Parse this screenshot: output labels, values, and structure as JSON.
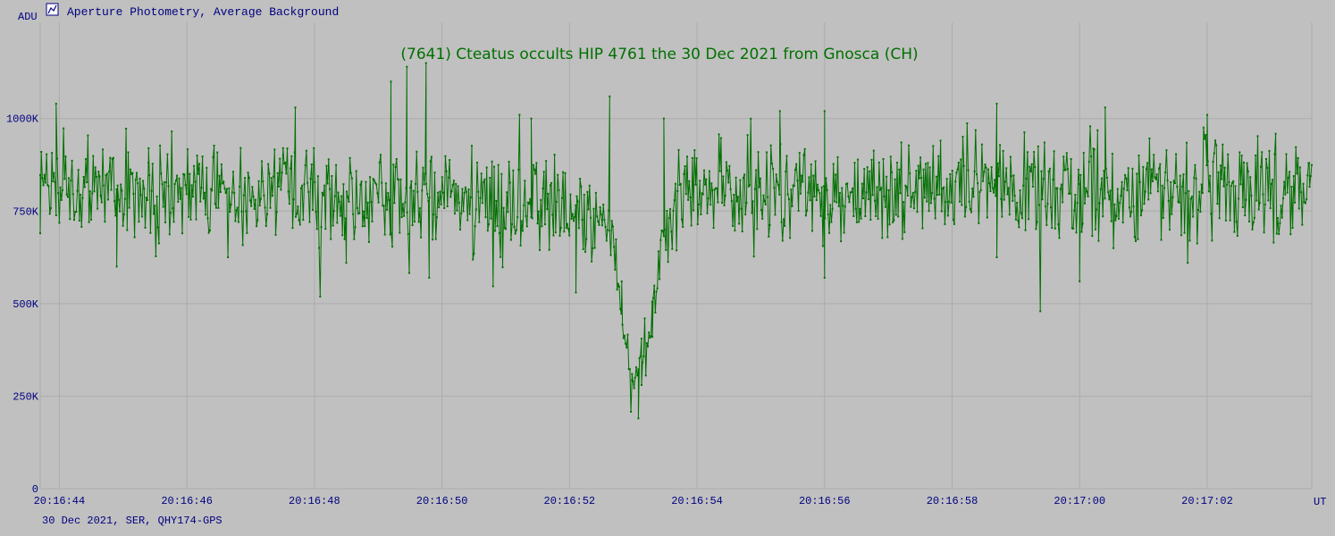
{
  "header": {
    "icon": "chart-window-icon",
    "title": "Aperture Photometry, Average Background"
  },
  "footer": {
    "caption": "30 Dec 2021, SER, QHY174-GPS"
  },
  "colors": {
    "background": "#c0c0c0",
    "grid": "#acacac",
    "axis_text": "#000080",
    "series": "#007000"
  },
  "chart_data": {
    "type": "line",
    "title": "(7641) Cteatus occults HIP 4761 the 30 Dec 2021 from Gnosca (CH)",
    "ylabel": "ADU",
    "xlabel": "UT",
    "xlim": [
      43.7,
      63.64
    ],
    "ylim": [
      0,
      1260000
    ],
    "y_ticks": [
      0,
      250000,
      500000,
      750000,
      1000000
    ],
    "y_tick_labels": [
      "0",
      "250K",
      "500K",
      "750K",
      "1000K"
    ],
    "x_ticks": [
      44,
      46,
      48,
      50,
      52,
      54,
      56,
      58,
      60,
      62
    ],
    "x_tick_labels": [
      "20:16:44",
      "20:16:46",
      "20:16:48",
      "20:16:50",
      "20:16:52",
      "20:16:54",
      "20:16:56",
      "20:16:58",
      "20:17:00",
      "20:17:02"
    ],
    "x_unit": "seconds after 20:16:00 UT",
    "grid": true,
    "series": [
      {
        "color": "#007000",
        "marker": "dot",
        "baseline_level": 810000,
        "noise_sigma": 68000,
        "drop_profile": {
          "x": [
            43.7,
            52.5,
            52.62,
            52.68,
            52.75,
            52.82,
            52.9,
            52.96,
            53.02,
            53.08,
            53.14,
            53.2,
            53.26,
            53.32,
            53.38,
            53.44,
            53.56,
            53.7,
            63.64
          ],
          "y": [
            810000,
            770000,
            710000,
            650000,
            560000,
            460000,
            390000,
            340000,
            320000,
            330000,
            350000,
            380000,
            430000,
            520000,
            580000,
            640000,
            720000,
            800000,
            810000
          ]
        },
        "sample_points": [
          {
            "x": 43.7,
            "y": 690000
          },
          {
            "x": 43.95,
            "y": 1040000
          },
          {
            "x": 44.9,
            "y": 600000
          },
          {
            "x": 45.4,
            "y": 920000
          },
          {
            "x": 47.7,
            "y": 1030000
          },
          {
            "x": 48.5,
            "y": 610000
          },
          {
            "x": 49.2,
            "y": 1100000
          },
          {
            "x": 49.45,
            "y": 1140000
          },
          {
            "x": 49.75,
            "y": 1150000
          },
          {
            "x": 49.8,
            "y": 570000
          },
          {
            "x": 51.4,
            "y": 1000000
          },
          {
            "x": 52.1,
            "y": 530000
          },
          {
            "x": 52.63,
            "y": 1060000
          },
          {
            "x": 52.82,
            "y": 560000
          },
          {
            "x": 52.98,
            "y": 310000
          },
          {
            "x": 53.08,
            "y": 190000
          },
          {
            "x": 53.13,
            "y": 280000
          },
          {
            "x": 53.3,
            "y": 410000
          },
          {
            "x": 53.48,
            "y": 1000000
          },
          {
            "x": 55.3,
            "y": 1020000
          },
          {
            "x": 56.0,
            "y": 570000
          },
          {
            "x": 56.0,
            "y": 1020000
          },
          {
            "x": 58.7,
            "y": 1040000
          },
          {
            "x": 60.0,
            "y": 560000
          },
          {
            "x": 60.4,
            "y": 1030000
          },
          {
            "x": 62.0,
            "y": 1010000
          },
          {
            "x": 63.6,
            "y": 880000
          }
        ]
      }
    ]
  }
}
